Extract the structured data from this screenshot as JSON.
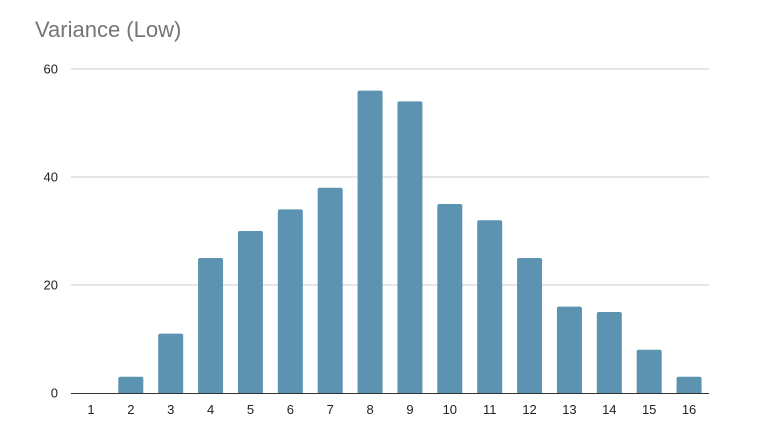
{
  "chart_data": {
    "type": "bar",
    "title": "Variance (Low)",
    "xlabel": "",
    "ylabel": "",
    "categories": [
      "1",
      "2",
      "3",
      "4",
      "5",
      "6",
      "7",
      "8",
      "9",
      "10",
      "11",
      "12",
      "13",
      "14",
      "15",
      "16"
    ],
    "values": [
      0,
      3,
      11,
      25,
      30,
      34,
      38,
      56,
      54,
      35,
      32,
      25,
      16,
      15,
      8,
      3
    ],
    "ylim": [
      0,
      60
    ],
    "yticks": [
      0,
      20,
      40,
      60
    ],
    "grid": true,
    "legend": "none",
    "bar_color": "#5b93b0",
    "title_color": "#757575"
  }
}
